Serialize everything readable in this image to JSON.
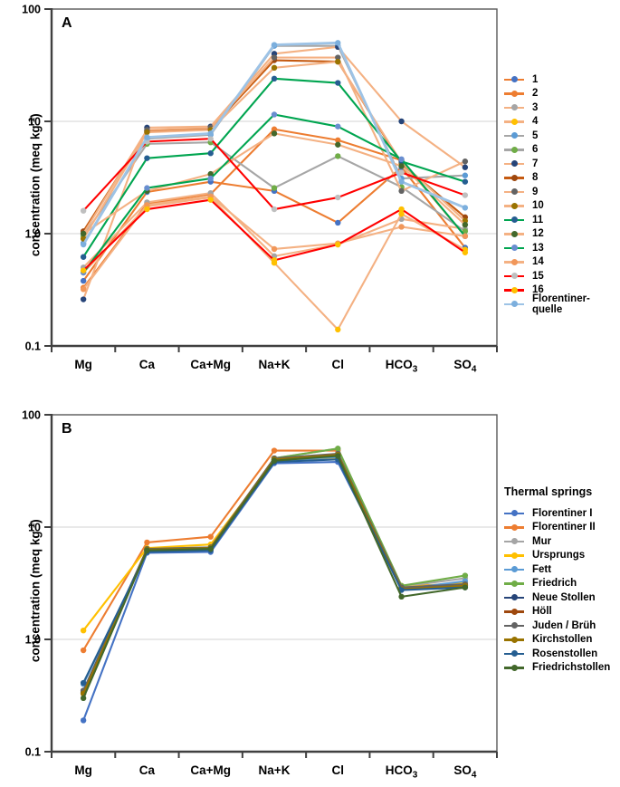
{
  "figure": {
    "background": "#ffffff",
    "axis_color": "#595959",
    "grid_color": "#dcdcdc",
    "text_color": "#000000"
  },
  "chart_data": [
    {
      "panel_label": "A",
      "type": "line",
      "scale": "log",
      "grid": "horizontal-decades",
      "legend_position": "right",
      "ylabel": {
        "main": "concentration (meq kg",
        "sup": "-1",
        "end": ")"
      },
      "ylim": [
        0.1,
        100
      ],
      "yticks": [
        "100",
        "10",
        "1.0",
        "0.1"
      ],
      "categories": [
        {
          "t": "Mg"
        },
        {
          "t": "Ca"
        },
        {
          "t": "Ca+Mg"
        },
        {
          "t": "Na+K"
        },
        {
          "t": "Cl"
        },
        {
          "t": "HCO",
          "sub": "3"
        },
        {
          "t": "SO",
          "sub": "4"
        }
      ],
      "series": [
        {
          "name": "1",
          "line": "#ED7D31",
          "marker": "#4472C4",
          "values": [
            0.38,
            2.35,
            2.9,
            2.4,
            1.25,
            3.9,
            0.75
          ]
        },
        {
          "name": "2",
          "line": "#ED7D31",
          "marker": "#ED7D31",
          "values": [
            0.33,
            1.85,
            2.25,
            8.5,
            6.8,
            4.5,
            0.95
          ]
        },
        {
          "name": "3",
          "line": "#F4B183",
          "marker": "#A5A5A5",
          "values": [
            0.5,
            1.9,
            2.3,
            0.63,
            0.8,
            1.35,
            1.1
          ]
        },
        {
          "name": "4",
          "line": "#F4B183",
          "marker": "#FFC000",
          "values": [
            0.45,
            1.75,
            2.1,
            0.55,
            0.14,
            1.5,
            0.72
          ]
        },
        {
          "name": "5",
          "line": "#A6A6A6",
          "marker": "#5B9BD5",
          "values": [
            0.82,
            7.0,
            7.6,
            47,
            47,
            3.1,
            3.3
          ]
        },
        {
          "name": "6",
          "line": "#A6A6A6",
          "marker": "#70AD47",
          "values": [
            0.95,
            6.3,
            6.5,
            2.55,
            4.9,
            2.6,
            1.05
          ]
        },
        {
          "name": "7",
          "line": "#F4B183",
          "marker": "#264478",
          "values": [
            0.26,
            8.8,
            9.0,
            40,
            46,
            10,
            3.9
          ]
        },
        {
          "name": "8",
          "line": "#C55A11",
          "marker": "#9E480E",
          "values": [
            1.05,
            8.2,
            8.6,
            35,
            34,
            4.2,
            1.4
          ]
        },
        {
          "name": "9",
          "line": "#F4B183",
          "marker": "#636363",
          "values": [
            1.0,
            8.4,
            8.8,
            37,
            37,
            2.4,
            4.4
          ]
        },
        {
          "name": "10",
          "line": "#F4B183",
          "marker": "#997300",
          "values": [
            0.9,
            8.0,
            8.4,
            30,
            34,
            4.3,
            1.3
          ]
        },
        {
          "name": "11",
          "line": "#00A550",
          "marker": "#255E91",
          "values": [
            0.62,
            4.7,
            5.2,
            24,
            22,
            4.4,
            2.9
          ]
        },
        {
          "name": "12",
          "line": "#F4B183",
          "marker": "#43682B",
          "values": [
            1.0,
            2.4,
            3.4,
            7.8,
            6.2,
            4.0,
            1.2
          ]
        },
        {
          "name": "13",
          "line": "#00A550",
          "marker": "#698ED0",
          "values": [
            0.45,
            2.55,
            3.1,
            11.5,
            9.0,
            4.6,
            0.95
          ]
        },
        {
          "name": "14",
          "line": "#F4B183",
          "marker": "#F1975A",
          "values": [
            0.32,
            1.8,
            2.15,
            0.73,
            0.82,
            1.15,
            0.95
          ]
        },
        {
          "name": "15",
          "line": "#FF0000",
          "marker": "#BFBFBF",
          "values": [
            1.6,
            6.6,
            7.0,
            1.65,
            2.1,
            3.5,
            2.2
          ]
        },
        {
          "name": "16",
          "line": "#FF0000",
          "marker": "#FFC000",
          "values": [
            0.47,
            1.65,
            2.0,
            0.58,
            0.8,
            1.65,
            0.68
          ]
        },
        {
          "name": "Florentiner-quelle",
          "line": "#9DC3E6",
          "marker": "#7CAFDD",
          "width": 2.8,
          "values": [
            0.8,
            7.2,
            7.8,
            48,
            50,
            2.9,
            1.7
          ]
        }
      ]
    },
    {
      "panel_label": "B",
      "type": "line",
      "scale": "log",
      "grid": "horizontal-decades",
      "legend_position": "right",
      "legend_title": "Thermal springs",
      "ylabel": {
        "main": "concentration (meq kg",
        "sup": "-1",
        "end": ")"
      },
      "ylim": [
        0.1,
        100
      ],
      "yticks": [
        "100",
        "10",
        "1.0",
        "0.1"
      ],
      "categories": [
        {
          "t": "Mg"
        },
        {
          "t": "Ca"
        },
        {
          "t": "Ca+Mg"
        },
        {
          "t": "Na+K"
        },
        {
          "t": "Cl"
        },
        {
          "t": "HCO",
          "sub": "3"
        },
        {
          "t": "SO",
          "sub": "4"
        }
      ],
      "series": [
        {
          "name": "Florentiner I",
          "line": "#4472C4",
          "marker": "#4472C4",
          "values": [
            0.19,
            5.9,
            6.0,
            37,
            38,
            2.9,
            3.0
          ]
        },
        {
          "name": "Florentiner II",
          "line": "#ED7D31",
          "marker": "#ED7D31",
          "values": [
            0.8,
            7.3,
            8.2,
            48,
            48,
            3.0,
            3.1
          ]
        },
        {
          "name": "Mur",
          "line": "#A5A5A5",
          "marker": "#A5A5A5",
          "values": [
            0.35,
            6.4,
            6.6,
            41,
            50,
            2.95,
            3.5
          ]
        },
        {
          "name": "Ursprungs",
          "line": "#FFC000",
          "marker": "#FFC000",
          "values": [
            1.2,
            6.5,
            7.0,
            39,
            41.5,
            2.9,
            3.2
          ]
        },
        {
          "name": "Fett",
          "line": "#5B9BD5",
          "marker": "#5B9BD5",
          "values": [
            0.4,
            6.1,
            6.3,
            39,
            42,
            2.8,
            3.3
          ]
        },
        {
          "name": "Friedrich",
          "line": "#70AD47",
          "marker": "#70AD47",
          "values": [
            0.33,
            6.3,
            6.5,
            41,
            50,
            3.0,
            3.7
          ]
        },
        {
          "name": "Neue Stollen",
          "line": "#264478",
          "marker": "#264478",
          "values": [
            0.34,
            6.2,
            6.4,
            40,
            44,
            2.85,
            3.0
          ]
        },
        {
          "name": "Höll",
          "line": "#9E480E",
          "marker": "#9E480E",
          "values": [
            0.33,
            6.3,
            6.5,
            40,
            44,
            2.9,
            3.0
          ]
        },
        {
          "name": "Juden / Brüh",
          "line": "#636363",
          "marker": "#636363",
          "values": [
            0.35,
            6.4,
            6.6,
            41,
            45,
            2.9,
            3.1
          ]
        },
        {
          "name": "Kirchstollen",
          "line": "#997300",
          "marker": "#997300",
          "values": [
            0.33,
            6.3,
            6.5,
            40,
            44,
            2.8,
            3.0
          ]
        },
        {
          "name": "Rosenstollen",
          "line": "#255E91",
          "marker": "#255E91",
          "values": [
            0.41,
            6.0,
            6.2,
            38,
            40,
            2.75,
            2.9
          ]
        },
        {
          "name": "Friedrichstollen",
          "line": "#43682B",
          "marker": "#43682B",
          "values": [
            0.3,
            6.2,
            6.4,
            39,
            43,
            2.4,
            2.9
          ]
        }
      ]
    }
  ]
}
